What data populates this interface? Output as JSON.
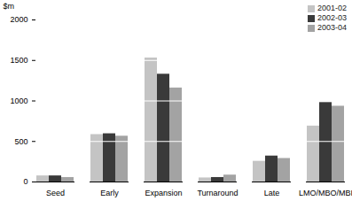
{
  "chart_data": {
    "type": "bar",
    "categories": [
      "Seed",
      "Early",
      "Expansion",
      "Turnaround",
      "Late",
      "LMO/MBO/MBI"
    ],
    "series": [
      {
        "name": "2001-02",
        "color": "#c4c4c4",
        "values": [
          75,
          585,
          1530,
          50,
          255,
          690
        ]
      },
      {
        "name": "2002-03",
        "color": "#3a3a3a",
        "values": [
          75,
          595,
          1330,
          55,
          320,
          980
        ]
      },
      {
        "name": "2003-04",
        "color": "#a3a3a3",
        "values": [
          55,
          565,
          1160,
          85,
          290,
          935
        ]
      }
    ],
    "y_label": "$m",
    "ylim": [
      0,
      2000
    ],
    "yticks": [
      0,
      500,
      1000,
      1500,
      2000
    ],
    "grid": true,
    "legend": "top-right"
  }
}
